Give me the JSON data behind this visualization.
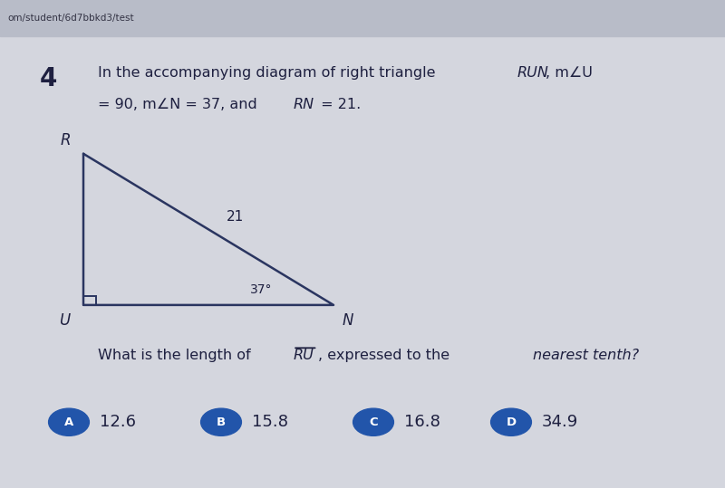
{
  "bg_color": "#d4d6de",
  "browser_bar_color": "#c5c8d4",
  "content_bg": "#d4d6de",
  "question_number": "4",
  "vertices": {
    "R": [
      0.115,
      0.685
    ],
    "U": [
      0.115,
      0.375
    ],
    "N": [
      0.46,
      0.375
    ]
  },
  "label_R": "R",
  "label_U": "U",
  "label_N": "N",
  "hyp_label": "21",
  "angle_label": "37°",
  "choices": [
    "12.6",
    "15.8",
    "16.8",
    "34.9"
  ],
  "choice_labels": [
    "A",
    "B",
    "C",
    "D"
  ],
  "circle_color": "#2255aa",
  "text_color": "#1e2040",
  "line_color": "#2a3560"
}
